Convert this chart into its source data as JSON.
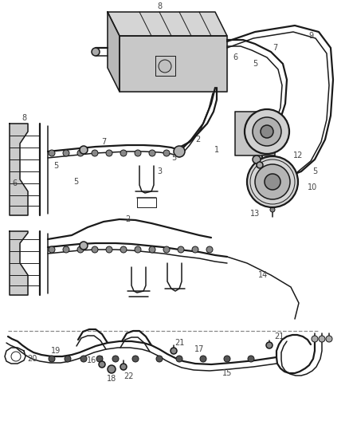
{
  "bg_color": "#ffffff",
  "line_color": "#1a1a1a",
  "label_color": "#444444",
  "figsize": [
    4.38,
    5.33
  ],
  "dpi": 100,
  "lw_main": 1.1,
  "lw_thick": 1.6,
  "lw_thin": 0.7
}
